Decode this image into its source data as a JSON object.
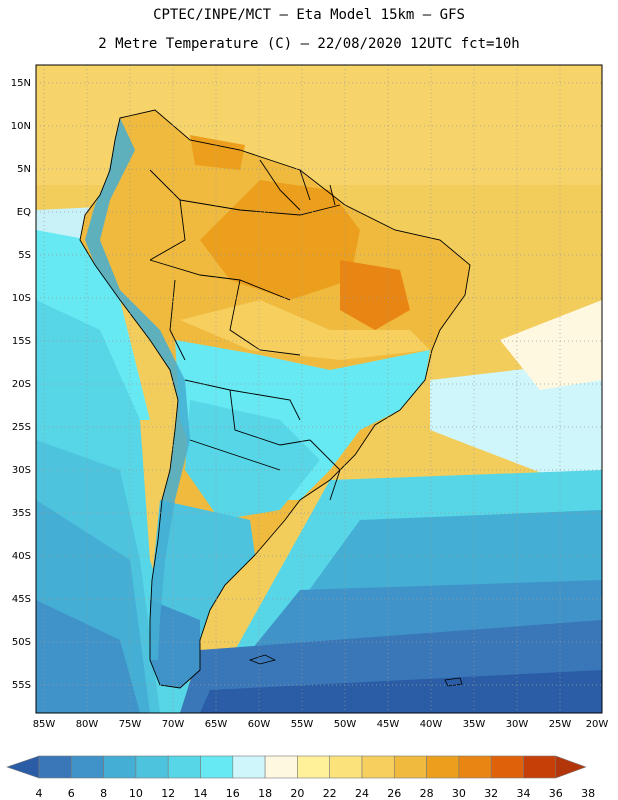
{
  "header": {
    "line1": "CPTEC/INPE/MCT –  Eta Model 15km – GFS",
    "line2": "2 Metre Temperature (C) – 22/08/2020 12UTC fct=10h"
  },
  "chart_data": {
    "type": "heatmap",
    "lat_ticks": [
      "15N",
      "10N",
      "5N",
      "EQ",
      "5S",
      "10S",
      "15S",
      "20S",
      "25S",
      "30S",
      "35S",
      "40S",
      "45S",
      "50S",
      "55S"
    ],
    "lon_ticks": [
      "85W",
      "80W",
      "75W",
      "70W",
      "65W",
      "60W",
      "55W",
      "50W",
      "45W",
      "40W",
      "35W",
      "30W",
      "25W",
      "20W"
    ],
    "lat_range": [
      -58,
      17
    ],
    "lon_range": [
      -86,
      -20
    ],
    "grid": true,
    "colorbar": {
      "levels": [
        "4",
        "6",
        "8",
        "10",
        "12",
        "14",
        "16",
        "18",
        "20",
        "22",
        "24",
        "26",
        "28",
        "30",
        "32",
        "34",
        "36",
        "38"
      ],
      "colors": [
        "#2a5da6",
        "#3a77b8",
        "#3f93c8",
        "#44aed4",
        "#4dc3de",
        "#56d6e6",
        "#66e9f2",
        "#cff6fb",
        "#fff8e0",
        "#fff19a",
        "#fbe27a",
        "#f6cf5e",
        "#efba3e",
        "#ec9f1c",
        "#e98512",
        "#df620b",
        "#c63f06",
        "#b2360a"
      ]
    }
  }
}
